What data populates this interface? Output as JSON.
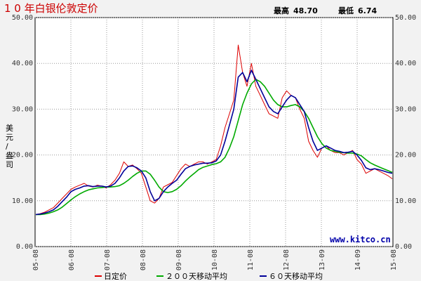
{
  "chart_data": {
    "type": "line",
    "title": "1 0 年白银伦敦定价",
    "stats": {
      "high_label": "最高",
      "high_value": "48.70",
      "low_label": "最低",
      "low_value": "6.74"
    },
    "ylabel": "美元/盎司",
    "ylim": [
      0,
      50
    ],
    "yticks": [
      "0.00",
      "10.00",
      "20.00",
      "30.00",
      "40.00",
      "50.00"
    ],
    "x_tick_labels": [
      "05-08",
      "06-08",
      "07-08",
      "08-08",
      "09-08",
      "10-08",
      "11-08",
      "12-08",
      "13-09",
      "14-09",
      "15-08"
    ],
    "watermark": "www.kitco.cn",
    "grid": true,
    "legend_placement": "bottom",
    "colors": {
      "daily": "#dd0000",
      "ma200": "#00aa00",
      "ma60": "#000099"
    },
    "series": [
      {
        "name": "日定价",
        "values": [
          7.0,
          7.2,
          7.5,
          8.0,
          8.5,
          9.5,
          10.5,
          11.5,
          12.5,
          13.0,
          13.4,
          13.8,
          13.2,
          13.0,
          13.4,
          13.2,
          12.8,
          13.5,
          14.5,
          16.0,
          18.5,
          17.5,
          17.8,
          17.0,
          16.0,
          13.0,
          10.0,
          9.5,
          10.5,
          13.0,
          13.5,
          14.0,
          15.5,
          17.0,
          18.0,
          17.5,
          18.0,
          18.5,
          18.5,
          18.0,
          18.5,
          19.0,
          22.0,
          26.0,
          29.0,
          32.0,
          44.0,
          38.0,
          35.0,
          40.0,
          35.0,
          33.0,
          31.0,
          29.0,
          28.5,
          28.0,
          32.5,
          34.0,
          33.0,
          32.5,
          30.0,
          28.0,
          23.0,
          21.0,
          19.5,
          21.5,
          22.0,
          21.0,
          20.5,
          20.5,
          20.0,
          20.5,
          21.0,
          19.0,
          18.0,
          16.0,
          16.5,
          17.0,
          16.5,
          16.0,
          15.5,
          14.8
        ]
      },
      {
        "name": "６０天移动平均",
        "values": [
          7.0,
          7.1,
          7.3,
          7.6,
          8.0,
          8.8,
          9.8,
          10.8,
          12.0,
          12.5,
          12.8,
          13.2,
          13.3,
          13.1,
          13.2,
          13.2,
          13.0,
          13.2,
          13.8,
          15.0,
          16.5,
          17.5,
          17.6,
          17.2,
          16.5,
          15.0,
          12.0,
          10.0,
          10.5,
          12.0,
          13.0,
          13.8,
          14.5,
          15.8,
          17.0,
          17.5,
          17.8,
          18.0,
          18.2,
          18.2,
          18.3,
          18.7,
          20.0,
          23.0,
          26.5,
          30.0,
          37.0,
          38.0,
          36.0,
          38.5,
          36.5,
          34.5,
          32.5,
          30.5,
          29.5,
          29.0,
          30.5,
          32.0,
          33.0,
          32.5,
          31.0,
          29.5,
          26.0,
          23.0,
          21.0,
          21.5,
          22.0,
          21.5,
          21.0,
          20.8,
          20.5,
          20.6,
          20.8,
          20.0,
          18.8,
          17.2,
          16.8,
          17.0,
          16.8,
          16.5,
          16.2,
          16.0
        ]
      },
      {
        "name": "２００天移动平均",
        "values": [
          7.0,
          7.0,
          7.1,
          7.3,
          7.6,
          8.0,
          8.6,
          9.4,
          10.2,
          10.9,
          11.5,
          12.0,
          12.4,
          12.6,
          12.8,
          12.9,
          13.0,
          13.0,
          13.1,
          13.3,
          13.8,
          14.5,
          15.3,
          16.0,
          16.5,
          16.5,
          15.8,
          14.5,
          13.0,
          12.0,
          11.8,
          12.0,
          12.5,
          13.3,
          14.3,
          15.2,
          16.0,
          16.8,
          17.3,
          17.6,
          17.9,
          18.1,
          18.5,
          19.5,
          21.5,
          24.0,
          27.5,
          31.0,
          33.5,
          35.5,
          36.5,
          36.0,
          35.0,
          33.5,
          32.0,
          31.0,
          30.5,
          30.5,
          30.8,
          31.0,
          30.5,
          29.5,
          28.0,
          26.0,
          24.0,
          22.5,
          21.5,
          21.0,
          20.8,
          20.6,
          20.5,
          20.4,
          20.4,
          20.2,
          19.8,
          19.0,
          18.3,
          17.8,
          17.4,
          17.0,
          16.6,
          16.2
        ]
      }
    ],
    "legend": [
      {
        "label": "日定价",
        "color": "#dd0000"
      },
      {
        "label": "２００天移动平均",
        "color": "#00aa00"
      },
      {
        "label": "６０天移动平均",
        "color": "#000099"
      }
    ]
  }
}
